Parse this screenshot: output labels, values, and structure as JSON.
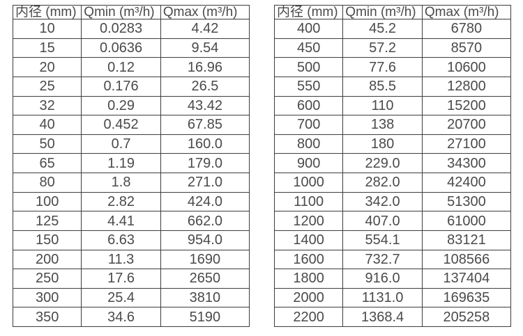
{
  "colors": {
    "border": "#3c3c3c",
    "text": "#4a4a4a",
    "background": "#ffffff"
  },
  "tables": [
    {
      "name": "flow-spec-table-small-diameters",
      "headers": [
        "内径 (mm)",
        "Qmin (m³/h)",
        "Qmax (m³/h)"
      ],
      "rows": [
        [
          "10",
          "0.0283",
          "4.42"
        ],
        [
          "15",
          "0.0636",
          "9.54"
        ],
        [
          "20",
          "0.12",
          "16.96"
        ],
        [
          "25",
          "0.176",
          "26.5"
        ],
        [
          "32",
          "0.29",
          "43.42"
        ],
        [
          "40",
          "0.452",
          "67.85"
        ],
        [
          "50",
          "0.7",
          "160.0"
        ],
        [
          "65",
          "1.19",
          "179.0"
        ],
        [
          "80",
          "1.8",
          "271.0"
        ],
        [
          "100",
          "2.82",
          "424.0"
        ],
        [
          "125",
          "4.41",
          "662.0"
        ],
        [
          "150",
          "6.63",
          "954.0"
        ],
        [
          "200",
          "11.3",
          "1690"
        ],
        [
          "250",
          "17.6",
          "2650"
        ],
        [
          "300",
          "25.4",
          "3810"
        ],
        [
          "350",
          "34.6",
          "5190"
        ]
      ]
    },
    {
      "name": "flow-spec-table-large-diameters",
      "headers": [
        "内径 (mm)",
        "Qmin (m³/h)",
        "Qmax (m³/h)"
      ],
      "rows": [
        [
          "400",
          "45.2",
          "6780"
        ],
        [
          "450",
          "57.2",
          "8570"
        ],
        [
          "500",
          "77.6",
          "10600"
        ],
        [
          "550",
          "85.5",
          "12800"
        ],
        [
          "600",
          "110",
          "15200"
        ],
        [
          "700",
          "138",
          "20700"
        ],
        [
          "800",
          "180",
          "27100"
        ],
        [
          "900",
          "229.0",
          "34300"
        ],
        [
          "1000",
          "282.0",
          "42400"
        ],
        [
          "1100",
          "342.0",
          "51300"
        ],
        [
          "1200",
          "407.0",
          "61000"
        ],
        [
          "1400",
          "554.1",
          "83121"
        ],
        [
          "1600",
          "732.7",
          "108566"
        ],
        [
          "1800",
          "916.0",
          "137404"
        ],
        [
          "2000",
          "1131.0",
          "169635"
        ],
        [
          "2200",
          "1368.4",
          "205258"
        ]
      ]
    }
  ]
}
